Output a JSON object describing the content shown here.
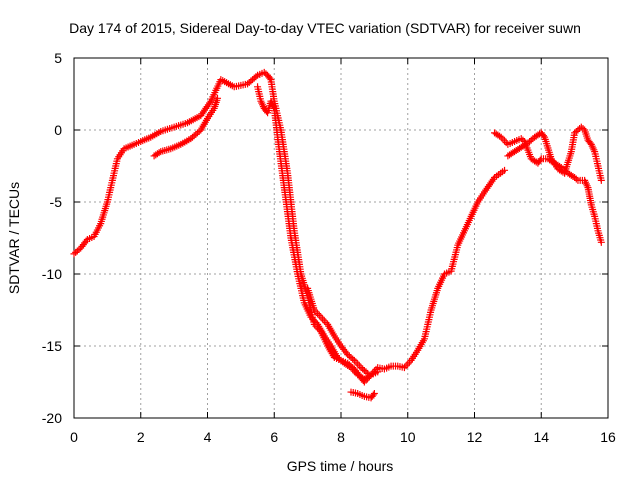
{
  "chart_data": {
    "type": "scatter",
    "title": "Day 174 of 2015, Sidereal Day-to-day VTEC variation (SDTVAR) for receiver suwn",
    "xlabel": "GPS time / hours",
    "ylabel": "SDTVAR / TECUs",
    "xlim": [
      0,
      16
    ],
    "ylim": [
      -20,
      5
    ],
    "xticks": [
      0,
      2,
      4,
      6,
      8,
      10,
      12,
      14,
      16
    ],
    "yticks": [
      5,
      0,
      -5,
      -10,
      -15,
      -20
    ],
    "grid": true,
    "marker": "+",
    "color": "#ff0000",
    "series": [
      {
        "x": [
          0.0,
          0.2,
          0.4,
          0.6,
          0.8,
          1.0,
          1.1,
          1.3,
          1.5,
          1.8,
          2.0,
          2.3,
          2.6,
          3.0,
          3.4,
          3.8,
          4.1,
          4.4,
          4.8,
          5.2,
          5.5,
          5.7,
          5.8,
          5.9,
          6.0,
          6.2,
          6.4,
          6.6,
          6.8,
          7.0,
          7.2,
          7.4,
          7.6,
          7.8,
          8.0,
          8.2,
          8.4,
          8.6,
          8.7,
          8.9,
          9.1,
          9.3,
          9.5,
          9.7,
          9.9,
          10.1,
          10.3,
          10.5,
          10.7,
          10.9,
          11.1,
          11.3,
          11.5,
          11.7,
          11.9,
          12.1,
          12.3,
          12.6,
          12.9
        ],
        "y": [
          -8.6,
          -8.2,
          -7.6,
          -7.4,
          -6.5,
          -5.0,
          -4.0,
          -2.0,
          -1.3,
          -1.0,
          -0.8,
          -0.5,
          -0.1,
          0.2,
          0.5,
          1.0,
          2.0,
          3.5,
          3.0,
          3.2,
          3.8,
          4.0,
          3.8,
          3.5,
          2.0,
          0.0,
          -3.0,
          -7.0,
          -10.0,
          -11.5,
          -13.5,
          -14.0,
          -15.0,
          -15.8,
          -16.0,
          -16.2,
          -16.6,
          -17.2,
          -17.5,
          -17.0,
          -16.5,
          -16.6,
          -16.4,
          -16.4,
          -16.5,
          -16.0,
          -15.3,
          -14.5,
          -12.5,
          -11.0,
          -10.0,
          -9.8,
          -8.0,
          -7.0,
          -6.0,
          -5.0,
          -4.3,
          -3.3,
          -2.8
        ]
      },
      {
        "x": [
          2.4,
          2.6,
          2.9,
          3.2,
          3.5,
          3.8,
          4.0,
          4.2,
          4.3
        ],
        "y": [
          -1.8,
          -1.5,
          -1.3,
          -1.0,
          -0.6,
          0.0,
          0.8,
          1.5,
          2.2
        ]
      },
      {
        "x": [
          5.5,
          5.6,
          5.7,
          5.8,
          5.9,
          6.0,
          6.1,
          6.3,
          6.5,
          6.7,
          6.9,
          7.1,
          7.3,
          7.5,
          7.7,
          7.9,
          8.1,
          8.3,
          8.5,
          8.7,
          8.9,
          9.1
        ],
        "y": [
          3.0,
          2.0,
          1.5,
          1.2,
          2.0,
          1.5,
          -0.5,
          -4.0,
          -7.5,
          -10.0,
          -12.0,
          -13.0,
          -13.5,
          -14.3,
          -15.0,
          -15.8,
          -16.2,
          -16.5,
          -17.0,
          -17.3,
          -17.0,
          -16.8
        ]
      },
      {
        "x": [
          7.0,
          7.2,
          7.4,
          7.6,
          7.8,
          8.0,
          8.2,
          8.4,
          8.6,
          8.8
        ],
        "y": [
          -11.0,
          -12.5,
          -13.0,
          -13.5,
          -14.3,
          -15.0,
          -15.6,
          -16.0,
          -16.5,
          -16.9
        ]
      },
      {
        "x": [
          8.3,
          8.5,
          8.7,
          8.9,
          9.0
        ],
        "y": [
          -18.2,
          -18.3,
          -18.5,
          -18.6,
          -18.3
        ]
      },
      {
        "x": [
          12.6,
          12.8,
          13.0,
          13.2,
          13.4,
          13.5,
          13.7,
          13.9,
          14.0,
          14.2,
          14.4,
          14.6,
          14.8,
          15.0,
          15.1,
          15.3,
          15.4,
          15.5,
          15.6,
          15.7,
          15.8
        ],
        "y": [
          -0.2,
          -0.5,
          -1.0,
          -0.8,
          -0.6,
          -0.8,
          -2.0,
          -2.3,
          -2.0,
          -2.0,
          -2.3,
          -2.6,
          -3.0,
          -3.3,
          -3.5,
          -3.5,
          -4.0,
          -5.2,
          -6.0,
          -7.0,
          -7.8
        ]
      },
      {
        "x": [
          13.0,
          13.2,
          13.4,
          13.6,
          13.8,
          14.0,
          14.1,
          14.3,
          14.5,
          14.7,
          14.9,
          15.0,
          15.1,
          15.2,
          15.3,
          15.4,
          15.5,
          15.6,
          15.7,
          15.8
        ],
        "y": [
          -1.8,
          -1.5,
          -1.2,
          -0.9,
          -0.5,
          -0.2,
          -0.5,
          -2.0,
          -2.7,
          -3.0,
          -1.5,
          -0.2,
          0.0,
          0.2,
          0.0,
          -0.7,
          -1.0,
          -1.5,
          -2.5,
          -3.5
        ]
      }
    ]
  }
}
